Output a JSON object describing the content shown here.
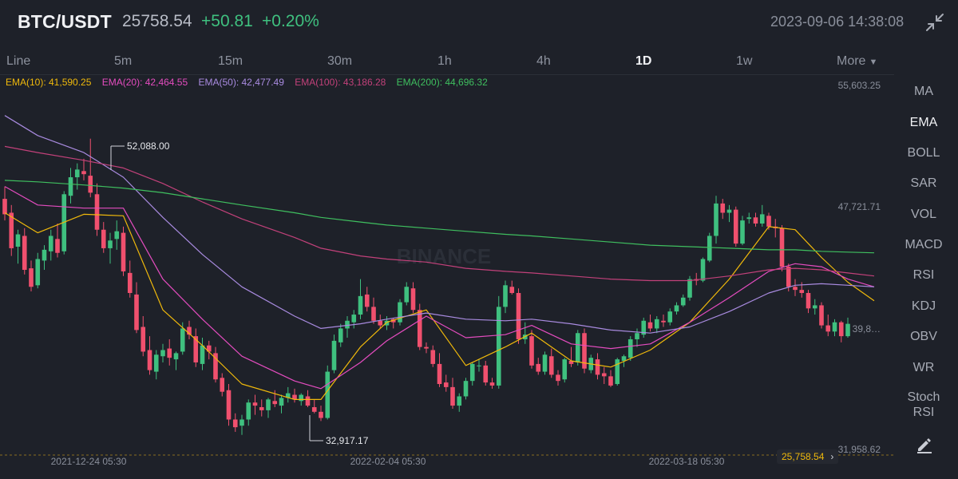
{
  "header": {
    "pair": "BTC/USDT",
    "last_price": "25758.54",
    "change": "+50.81",
    "change_pct": "+0.20%",
    "datetime": "2023-09-06 14:38:08"
  },
  "timeframes": [
    {
      "label": "Line"
    },
    {
      "label": "5m"
    },
    {
      "label": "15m"
    },
    {
      "label": "30m"
    },
    {
      "label": "1h"
    },
    {
      "label": "4h"
    },
    {
      "label": "1D",
      "active": true
    },
    {
      "label": "1w"
    },
    {
      "label": "More"
    }
  ],
  "ema_legend": [
    {
      "label": "EMA(10): 41,590.25",
      "color": "#f0b90b"
    },
    {
      "label": "EMA(20): 42,464.55",
      "color": "#e44cbf"
    },
    {
      "label": "EMA(50): 42,477.49",
      "color": "#a98be0"
    },
    {
      "label": "EMA(100): 43,186.28",
      "color": "#c2417a"
    },
    {
      "label": "EMA(200): 44,696.32",
      "color": "#3fbf5f"
    }
  ],
  "price_axis": [
    "55,603.25",
    "47,721.71",
    "39,8…",
    "31,958.62"
  ],
  "date_axis": [
    "2021-12-24 05:30",
    "2022-02-04 05:30",
    "2022-03-18 05:30"
  ],
  "annotations": {
    "high": "52,088.00",
    "low": "32,917.17"
  },
  "last_price_tag": "25,758.54",
  "watermark": "BINANCE",
  "side_indicators": [
    {
      "label": "MA"
    },
    {
      "label": "EMA",
      "active": true
    },
    {
      "label": "BOLL"
    },
    {
      "label": "SAR"
    },
    {
      "label": "VOL"
    },
    {
      "label": "MACD"
    },
    {
      "label": "RSI"
    },
    {
      "label": "KDJ"
    },
    {
      "label": "OBV"
    },
    {
      "label": "WR"
    },
    {
      "label": "Stoch RSI"
    }
  ],
  "icons": {
    "collapse": "collapse-arrows-icon",
    "draw": "pencil-icon",
    "more_caret": "caret-down-icon",
    "tag_arrow": "chevron-right-icon"
  },
  "colors": {
    "up": "#3fc07f",
    "down": "#f0506e",
    "background": "#1e2129",
    "accent": "#f0b90b"
  },
  "chart_data": {
    "type": "candlestick",
    "interval": "1D",
    "ylim": [
      31958.62,
      55603.25
    ],
    "candles": [
      [
        48200,
        49000,
        46800,
        47200
      ],
      [
        47300,
        47800,
        44500,
        45000
      ],
      [
        45100,
        46200,
        44000,
        45900
      ],
      [
        45800,
        46300,
        43300,
        43600
      ],
      [
        43700,
        44200,
        42200,
        42500
      ],
      [
        42600,
        44700,
        42400,
        44300
      ],
      [
        44200,
        45200,
        43600,
        44900
      ],
      [
        44800,
        46200,
        44200,
        45800
      ],
      [
        45600,
        46600,
        44400,
        44700
      ],
      [
        44800,
        48700,
        44600,
        48500
      ],
      [
        48400,
        50200,
        47900,
        49600
      ],
      [
        49600,
        50500,
        48800,
        50100
      ],
      [
        50000,
        50800,
        49400,
        49800
      ],
      [
        49700,
        52100,
        48300,
        48600
      ],
      [
        48500,
        49200,
        45800,
        46200
      ],
      [
        46200,
        46700,
        44700,
        45000
      ],
      [
        45000,
        46000,
        44000,
        45500
      ],
      [
        45600,
        46800,
        44900,
        46100
      ],
      [
        46000,
        46400,
        43200,
        43500
      ],
      [
        43400,
        44200,
        41800,
        42100
      ],
      [
        42000,
        42800,
        39500,
        39700
      ],
      [
        39900,
        40600,
        38000,
        38300
      ],
      [
        38400,
        39300,
        36800,
        37100
      ],
      [
        37000,
        38400,
        36500,
        38100
      ],
      [
        38000,
        38800,
        37600,
        38400
      ],
      [
        38500,
        39100,
        37400,
        37900
      ],
      [
        37800,
        38300,
        37100,
        38200
      ],
      [
        38300,
        40200,
        38100,
        39800
      ],
      [
        39900,
        40300,
        39100,
        39400
      ],
      [
        39300,
        39800,
        37300,
        37600
      ],
      [
        37500,
        39200,
        37100,
        38700
      ],
      [
        38700,
        39000,
        37800,
        38300
      ],
      [
        38200,
        38600,
        36300,
        36500
      ],
      [
        36600,
        36900,
        35400,
        35700
      ],
      [
        35800,
        36200,
        33500,
        33900
      ],
      [
        33900,
        34300,
        33100,
        33400
      ],
      [
        33500,
        34200,
        32900,
        33900
      ],
      [
        33900,
        35200,
        33500,
        35000
      ],
      [
        35000,
        35500,
        34200,
        34800
      ],
      [
        34700,
        35200,
        34100,
        34500
      ],
      [
        34500,
        35300,
        34000,
        35200
      ],
      [
        35100,
        35800,
        34700,
        34900
      ],
      [
        34800,
        35500,
        34300,
        35300
      ],
      [
        35300,
        36000,
        35000,
        35600
      ],
      [
        35500,
        35900,
        35000,
        35200
      ],
      [
        35100,
        35600,
        34800,
        35500
      ],
      [
        35400,
        35800,
        34700,
        34800
      ],
      [
        34700,
        35200,
        34300,
        34400
      ],
      [
        34400,
        34800,
        33800,
        34000
      ],
      [
        34000,
        37400,
        33900,
        37000
      ],
      [
        37100,
        39400,
        36900,
        39000
      ],
      [
        38900,
        40100,
        38600,
        39800
      ],
      [
        39800,
        40600,
        39200,
        40300
      ],
      [
        40200,
        41000,
        39800,
        40700
      ],
      [
        40700,
        43000,
        40400,
        41900
      ],
      [
        42000,
        42500,
        40900,
        41200
      ],
      [
        41200,
        41800,
        40100,
        40300
      ],
      [
        40300,
        40700,
        39800,
        40000
      ],
      [
        40000,
        40600,
        39700,
        40300
      ],
      [
        40400,
        40500,
        39800,
        40200
      ],
      [
        40200,
        41700,
        40000,
        41500
      ],
      [
        41500,
        42800,
        41300,
        42500
      ],
      [
        42400,
        42800,
        40800,
        41000
      ],
      [
        41000,
        41400,
        38400,
        38600
      ],
      [
        38600,
        38900,
        38200,
        38500
      ],
      [
        38400,
        38700,
        37300,
        37500
      ],
      [
        37500,
        38200,
        36000,
        36200
      ],
      [
        36300,
        36800,
        35700,
        36000
      ],
      [
        36000,
        36600,
        34600,
        34800
      ],
      [
        34800,
        35600,
        34400,
        35400
      ],
      [
        35400,
        36600,
        35200,
        36400
      ],
      [
        36400,
        37600,
        36100,
        37500
      ],
      [
        37400,
        37800,
        37000,
        37400
      ],
      [
        37400,
        37700,
        36100,
        36300
      ],
      [
        36300,
        36600,
        35900,
        36100
      ],
      [
        36100,
        41900,
        35900,
        41200
      ],
      [
        41200,
        42900,
        40800,
        42600
      ],
      [
        42500,
        42900,
        42000,
        42100
      ],
      [
        42100,
        42400,
        38800,
        39100
      ],
      [
        39100,
        40200,
        38800,
        39400
      ],
      [
        39300,
        39700,
        37200,
        37400
      ],
      [
        37500,
        37900,
        36800,
        37000
      ],
      [
        37000,
        38300,
        36800,
        38100
      ],
      [
        38000,
        38500,
        36600,
        36800
      ],
      [
        36800,
        37100,
        36100,
        36400
      ],
      [
        36500,
        37900,
        36300,
        37800
      ],
      [
        37700,
        38600,
        37300,
        37500
      ],
      [
        37600,
        39700,
        37400,
        39500
      ],
      [
        39500,
        39800,
        36900,
        37200
      ],
      [
        37100,
        38100,
        36900,
        37900
      ],
      [
        37800,
        38200,
        36500,
        36800
      ],
      [
        36900,
        37300,
        36200,
        36700
      ],
      [
        36700,
        37100,
        36000,
        36100
      ],
      [
        36200,
        37900,
        36100,
        37800
      ],
      [
        37700,
        38100,
        37300,
        38000
      ],
      [
        37900,
        39300,
        37700,
        39100
      ],
      [
        39100,
        39800,
        38600,
        39500
      ],
      [
        39400,
        40500,
        39200,
        40300
      ],
      [
        40200,
        40700,
        39600,
        39800
      ],
      [
        39800,
        40600,
        39500,
        40400
      ],
      [
        40300,
        40700,
        39900,
        40200
      ],
      [
        40200,
        41100,
        40000,
        40900
      ],
      [
        40900,
        41500,
        40700,
        41300
      ],
      [
        41300,
        42000,
        41200,
        41800
      ],
      [
        41800,
        43200,
        41600,
        43000
      ],
      [
        43000,
        43400,
        42600,
        42900
      ],
      [
        42900,
        44400,
        42800,
        44300
      ],
      [
        44200,
        46000,
        44100,
        45800
      ],
      [
        45800,
        48400,
        45300,
        47900
      ],
      [
        47900,
        48200,
        46900,
        47300
      ],
      [
        47300,
        47800,
        46700,
        47500
      ],
      [
        47500,
        47700,
        45100,
        45300
      ],
      [
        45300,
        47100,
        45200,
        46800
      ],
      [
        46900,
        47300,
        46600,
        47000
      ],
      [
        47000,
        47300,
        46400,
        46600
      ],
      [
        46600,
        47800,
        46400,
        47200
      ],
      [
        47100,
        47300,
        46200,
        46400
      ],
      [
        46400,
        46900,
        45700,
        46300
      ],
      [
        46300,
        46500,
        43500,
        43800
      ],
      [
        43800,
        44000,
        42200,
        42500
      ],
      [
        42500,
        43000,
        41900,
        42300
      ],
      [
        42300,
        42800,
        41800,
        42100
      ],
      [
        42100,
        42300,
        40800,
        41100
      ],
      [
        41100,
        41700,
        40700,
        41300
      ],
      [
        41300,
        41500,
        39800,
        40000
      ],
      [
        40000,
        40700,
        39300,
        39600
      ],
      [
        39600,
        40400,
        39300,
        40200
      ],
      [
        40200,
        40300,
        38900,
        39300
      ],
      [
        39300,
        40500,
        39200,
        40100
      ]
    ],
    "ema": [
      {
        "name": "EMA(10)",
        "color": "#f0b90b",
        "points": [
          [
            0,
            47300
          ],
          [
            5,
            46000
          ],
          [
            12,
            47200
          ],
          [
            18,
            47100
          ],
          [
            24,
            41000
          ],
          [
            30,
            38700
          ],
          [
            36,
            36200
          ],
          [
            44,
            35200
          ],
          [
            48,
            35200
          ],
          [
            54,
            38600
          ],
          [
            58,
            40200
          ],
          [
            64,
            41000
          ],
          [
            70,
            37400
          ],
          [
            76,
            38600
          ],
          [
            80,
            39500
          ],
          [
            86,
            37700
          ],
          [
            92,
            37300
          ],
          [
            98,
            38400
          ],
          [
            104,
            40200
          ],
          [
            110,
            43000
          ],
          [
            116,
            46400
          ],
          [
            120,
            46200
          ],
          [
            124,
            44400
          ],
          [
            128,
            42800
          ],
          [
            132,
            41600
          ]
        ]
      },
      {
        "name": "EMA(20)",
        "color": "#e44cbf",
        "points": [
          [
            0,
            49000
          ],
          [
            5,
            47800
          ],
          [
            12,
            47600
          ],
          [
            18,
            47600
          ],
          [
            24,
            43000
          ],
          [
            30,
            40400
          ],
          [
            36,
            38000
          ],
          [
            44,
            36400
          ],
          [
            48,
            35900
          ],
          [
            54,
            37600
          ],
          [
            58,
            39000
          ],
          [
            64,
            40600
          ],
          [
            70,
            39200
          ],
          [
            76,
            39400
          ],
          [
            80,
            40000
          ],
          [
            86,
            38800
          ],
          [
            92,
            38500
          ],
          [
            98,
            38800
          ],
          [
            104,
            40200
          ],
          [
            110,
            41800
          ],
          [
            116,
            43500
          ],
          [
            120,
            44000
          ],
          [
            124,
            43800
          ],
          [
            128,
            43000
          ],
          [
            132,
            42500
          ]
        ]
      },
      {
        "name": "EMA(50)",
        "color": "#a98be0",
        "points": [
          [
            0,
            53600
          ],
          [
            5,
            52300
          ],
          [
            12,
            51200
          ],
          [
            18,
            49600
          ],
          [
            24,
            47000
          ],
          [
            30,
            44600
          ],
          [
            36,
            42500
          ],
          [
            44,
            40600
          ],
          [
            48,
            39800
          ],
          [
            54,
            40100
          ],
          [
            58,
            40400
          ],
          [
            64,
            40800
          ],
          [
            70,
            40400
          ],
          [
            76,
            40300
          ],
          [
            80,
            40400
          ],
          [
            86,
            40100
          ],
          [
            92,
            39700
          ],
          [
            98,
            39500
          ],
          [
            104,
            39900
          ],
          [
            110,
            40900
          ],
          [
            116,
            42100
          ],
          [
            120,
            42600
          ],
          [
            124,
            42700
          ],
          [
            128,
            42600
          ],
          [
            132,
            42500
          ]
        ]
      },
      {
        "name": "EMA(100)",
        "color": "#c2417a",
        "points": [
          [
            0,
            51600
          ],
          [
            5,
            51200
          ],
          [
            12,
            50700
          ],
          [
            18,
            50200
          ],
          [
            24,
            49200
          ],
          [
            30,
            48000
          ],
          [
            36,
            46900
          ],
          [
            44,
            45700
          ],
          [
            48,
            45000
          ],
          [
            54,
            44500
          ],
          [
            58,
            44300
          ],
          [
            64,
            44100
          ],
          [
            70,
            43700
          ],
          [
            76,
            43500
          ],
          [
            80,
            43400
          ],
          [
            86,
            43200
          ],
          [
            92,
            43000
          ],
          [
            98,
            42900
          ],
          [
            104,
            42900
          ],
          [
            110,
            43200
          ],
          [
            116,
            43600
          ],
          [
            120,
            43700
          ],
          [
            124,
            43600
          ],
          [
            128,
            43400
          ],
          [
            132,
            43200
          ]
        ]
      },
      {
        "name": "EMA(200)",
        "color": "#3fbf5f",
        "points": [
          [
            0,
            49400
          ],
          [
            5,
            49300
          ],
          [
            12,
            49100
          ],
          [
            18,
            48900
          ],
          [
            24,
            48600
          ],
          [
            30,
            48200
          ],
          [
            36,
            47800
          ],
          [
            44,
            47300
          ],
          [
            48,
            47000
          ],
          [
            54,
            46700
          ],
          [
            58,
            46500
          ],
          [
            64,
            46300
          ],
          [
            70,
            46100
          ],
          [
            76,
            45900
          ],
          [
            80,
            45800
          ],
          [
            86,
            45600
          ],
          [
            92,
            45400
          ],
          [
            98,
            45200
          ],
          [
            104,
            45100
          ],
          [
            110,
            45000
          ],
          [
            116,
            44900
          ],
          [
            120,
            44900
          ],
          [
            124,
            44800
          ],
          [
            128,
            44750
          ],
          [
            132,
            44700
          ]
        ]
      }
    ]
  }
}
